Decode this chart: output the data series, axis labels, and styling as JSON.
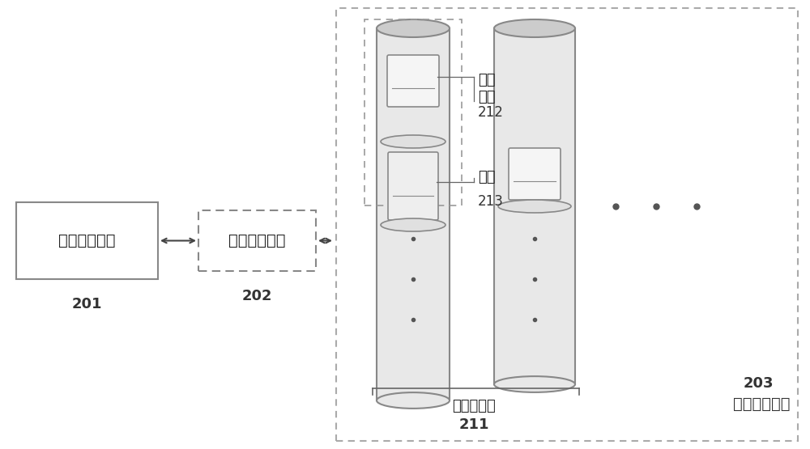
{
  "bg_color": "#f5f5f5",
  "white": "#ffffff",
  "light_gray": "#e8e8e8",
  "dark_gray": "#888888",
  "black": "#000000",
  "box_edge": "#aaaaaa",
  "box1_label": "表计控制平台",
  "box1_id": "201",
  "box2_label": "无线通信模块",
  "box2_id": "202",
  "big_box_label": "模拟试验场地",
  "big_box_id": "203",
  "pole1_label": "表计支撑杆",
  "pole1_id": "211",
  "meter_label": "模拟\n表计",
  "meter_id": "212",
  "rail_label": "滑轨",
  "rail_id": "213",
  "font_size_main": 14,
  "font_size_id": 12
}
